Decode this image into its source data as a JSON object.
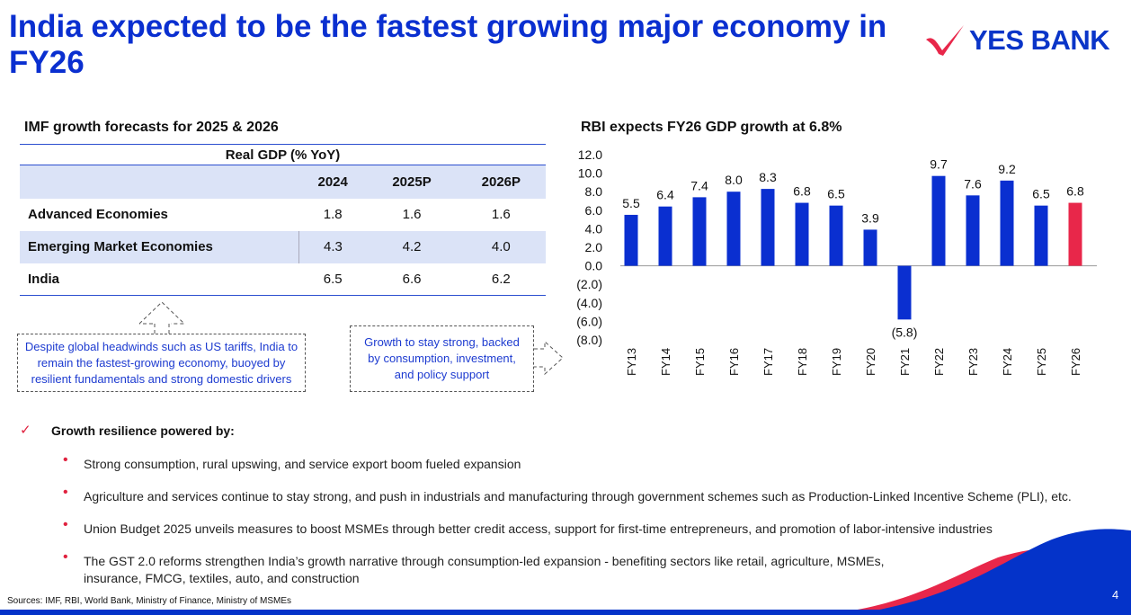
{
  "title": "India expected to be the fastest growing major economy in FY26",
  "logo": "YES BANK",
  "table": {
    "heading": "IMF growth forecasts for 2025 & 2026",
    "caption": "Real GDP (% YoY)",
    "columns": [
      "2024",
      "2025P",
      "2026P"
    ],
    "rows": [
      {
        "label": "Advanced Economies",
        "values": [
          "1.8",
          "1.6",
          "1.6"
        ]
      },
      {
        "label": "Emerging Market Economies",
        "values": [
          "4.3",
          "4.2",
          "4.0"
        ]
      },
      {
        "label": "India",
        "values": [
          "6.5",
          "6.6",
          "6.2"
        ]
      }
    ]
  },
  "callouts": [
    "Despite global headwinds such as US tariffs, India to remain the fastest-growing economy, buoyed by resilient fundamentals and strong domestic drivers",
    "Growth to stay strong, backed by consumption, investment, and policy support"
  ],
  "chart_data": {
    "type": "bar",
    "title": "RBI expects FY26 GDP growth at 6.8%",
    "categories": [
      "FY13",
      "FY14",
      "FY15",
      "FY16",
      "FY17",
      "FY18",
      "FY19",
      "FY20",
      "FY21",
      "FY22",
      "FY23",
      "FY24",
      "FY25",
      "FY26"
    ],
    "values": [
      5.5,
      6.4,
      7.4,
      8.0,
      8.3,
      6.8,
      6.5,
      3.9,
      -5.8,
      9.7,
      7.6,
      9.2,
      6.5,
      6.8
    ],
    "labels": [
      "5.5",
      "6.4",
      "7.4",
      "8.0",
      "8.3",
      "6.8",
      "6.5",
      "3.9",
      "(5.8)",
      "9.7",
      "7.6",
      "9.2",
      "6.5",
      "6.8"
    ],
    "yticks": [
      "12.0",
      "10.0",
      "8.0",
      "6.0",
      "4.0",
      "2.0",
      "0.0",
      "(2.0)",
      "(4.0)",
      "(6.0)",
      "(8.0)"
    ],
    "ylim": [
      -8,
      12
    ],
    "colors": {
      "actual": "#0a2fd0",
      "forecast": "#e8274a"
    },
    "highlight": "FY26"
  },
  "resilience": {
    "heading": "Growth resilience powered by:",
    "items": [
      "Strong consumption, rural upswing, and service export boom fueled expansion",
      "Agriculture and services continue to stay strong, and push in industrials and manufacturing through government schemes such as Production-Linked Incentive Scheme (PLI), etc.",
      "Union Budget 2025 unveils measures to boost MSMEs through better credit access, support for first-time entrepreneurs, and promotion of labor-intensive industries",
      "The GST 2.0 reforms strengthen India’s growth narrative through consumption-led expansion - benefiting sectors like retail, agriculture, MSMEs, insurance, FMCG, textiles, auto, and construction"
    ]
  },
  "sources": "Sources: IMF, RBI, World Bank, Ministry of Finance, Ministry of MSMEs",
  "page": "4"
}
